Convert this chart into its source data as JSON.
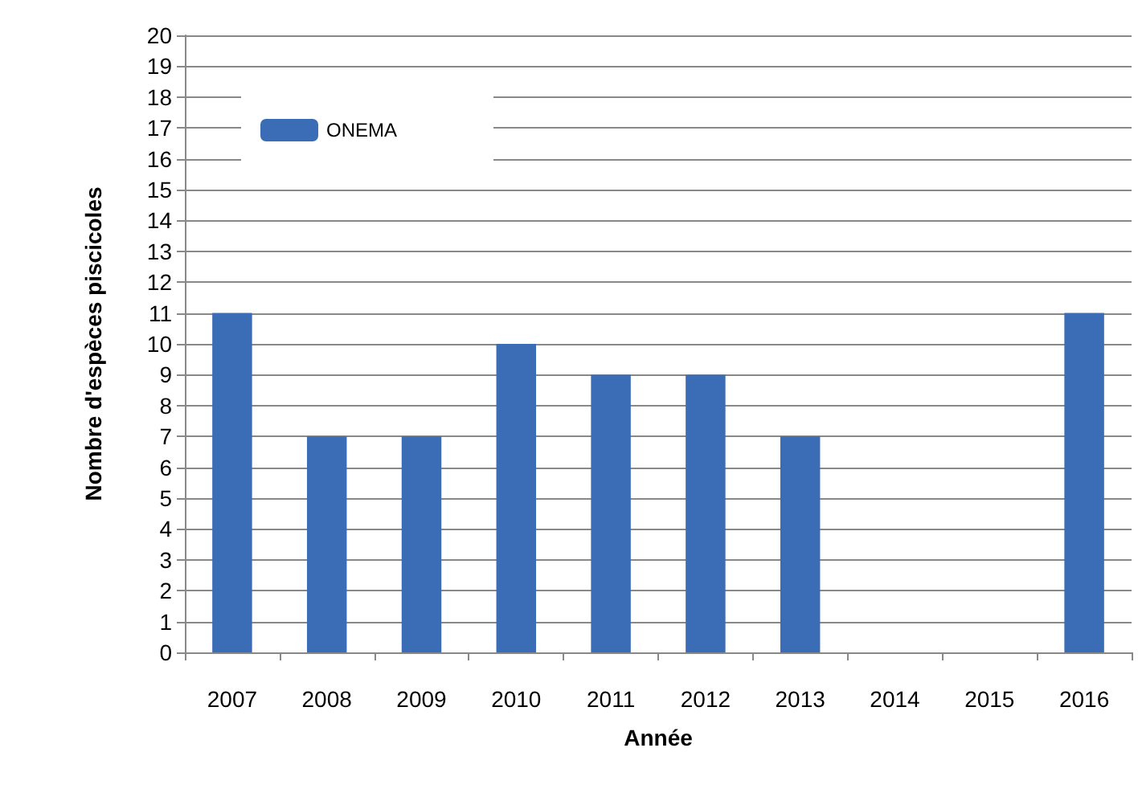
{
  "chart_data": {
    "type": "bar",
    "xlabel": "Année",
    "ylabel": "Nombre d'espèces piscicoles",
    "categories": [
      "2007",
      "2008",
      "2009",
      "2010",
      "2011",
      "2012",
      "2013",
      "2014",
      "2015",
      "2016"
    ],
    "series": [
      {
        "name": "ONEMA",
        "color": "#3a6db5",
        "values": [
          11,
          7,
          7,
          10,
          9,
          9,
          7,
          null,
          null,
          11
        ]
      }
    ],
    "ylim": [
      0,
      20
    ],
    "yticks": [
      0,
      1,
      2,
      3,
      4,
      5,
      6,
      7,
      8,
      9,
      10,
      11,
      12,
      13,
      14,
      15,
      16,
      17,
      18,
      19,
      20
    ],
    "grid": "y",
    "legend": "top left"
  }
}
